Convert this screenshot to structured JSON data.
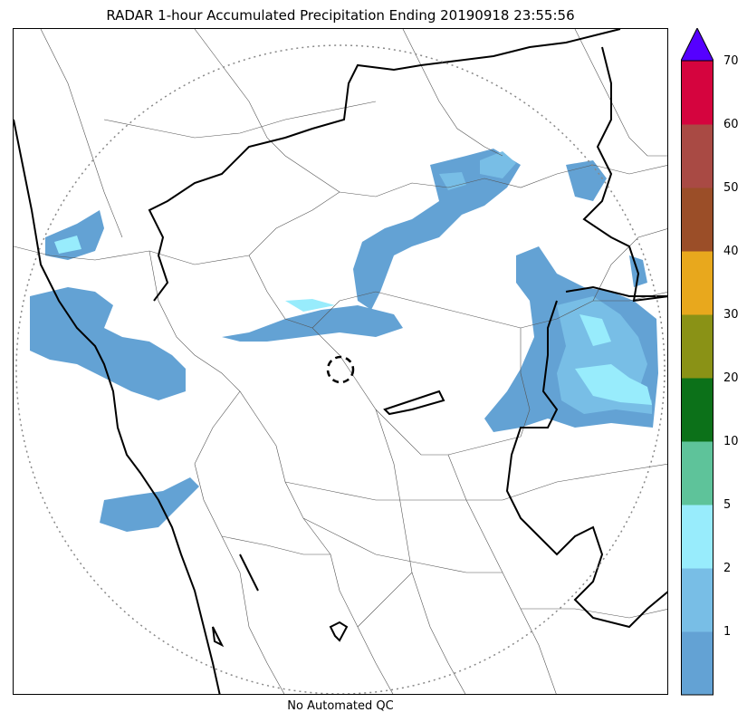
{
  "title": "RADAR 1-hour Accumulated Precipitation Ending 20190918 23:55:56",
  "footer": "No Automated QC",
  "colorbar": {
    "labels": [
      "1",
      "2",
      "5",
      "10",
      "20",
      "30",
      "40",
      "50",
      "60",
      "70"
    ],
    "colors": [
      "#63a2d4",
      "#78bee6",
      "#98ecfc",
      "#5ec39a",
      "#0c7119",
      "#8a9216",
      "#e8a81d",
      "#9b4e28",
      "#a94a44",
      "#d5043e"
    ],
    "over_color": "#5500ff"
  },
  "legend_values": {
    "units_note": ""
  }
}
